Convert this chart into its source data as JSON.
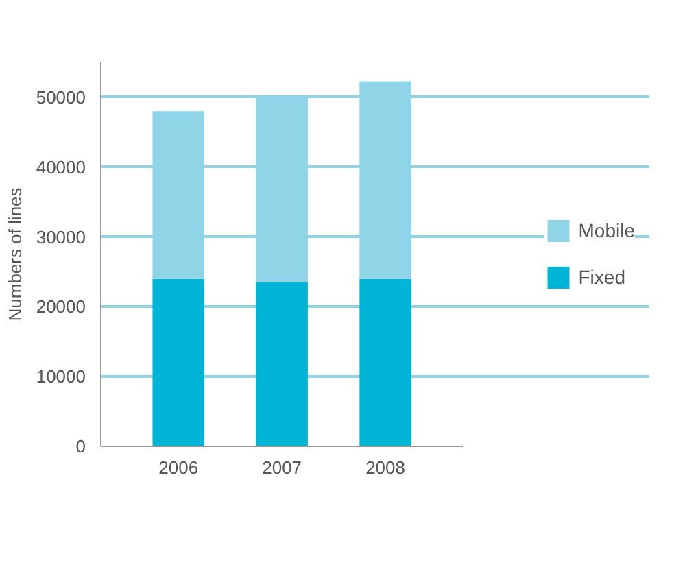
{
  "chart_data": {
    "type": "bar",
    "stacked": true,
    "ylabel": "Numbers of lines",
    "categories": [
      "2006",
      "2007",
      "2008"
    ],
    "series": [
      {
        "name": "Fixed",
        "color": "#00b5d5",
        "values": [
          24000,
          23500,
          24000
        ]
      },
      {
        "name": "Mobile",
        "color": "#8fd4e7",
        "values": [
          24000,
          26500,
          28300
        ]
      }
    ],
    "ylim": [
      0,
      55000
    ],
    "yticks": [
      0,
      10000,
      20000,
      30000,
      40000,
      50000
    ],
    "grid": "y",
    "legend": "right"
  }
}
